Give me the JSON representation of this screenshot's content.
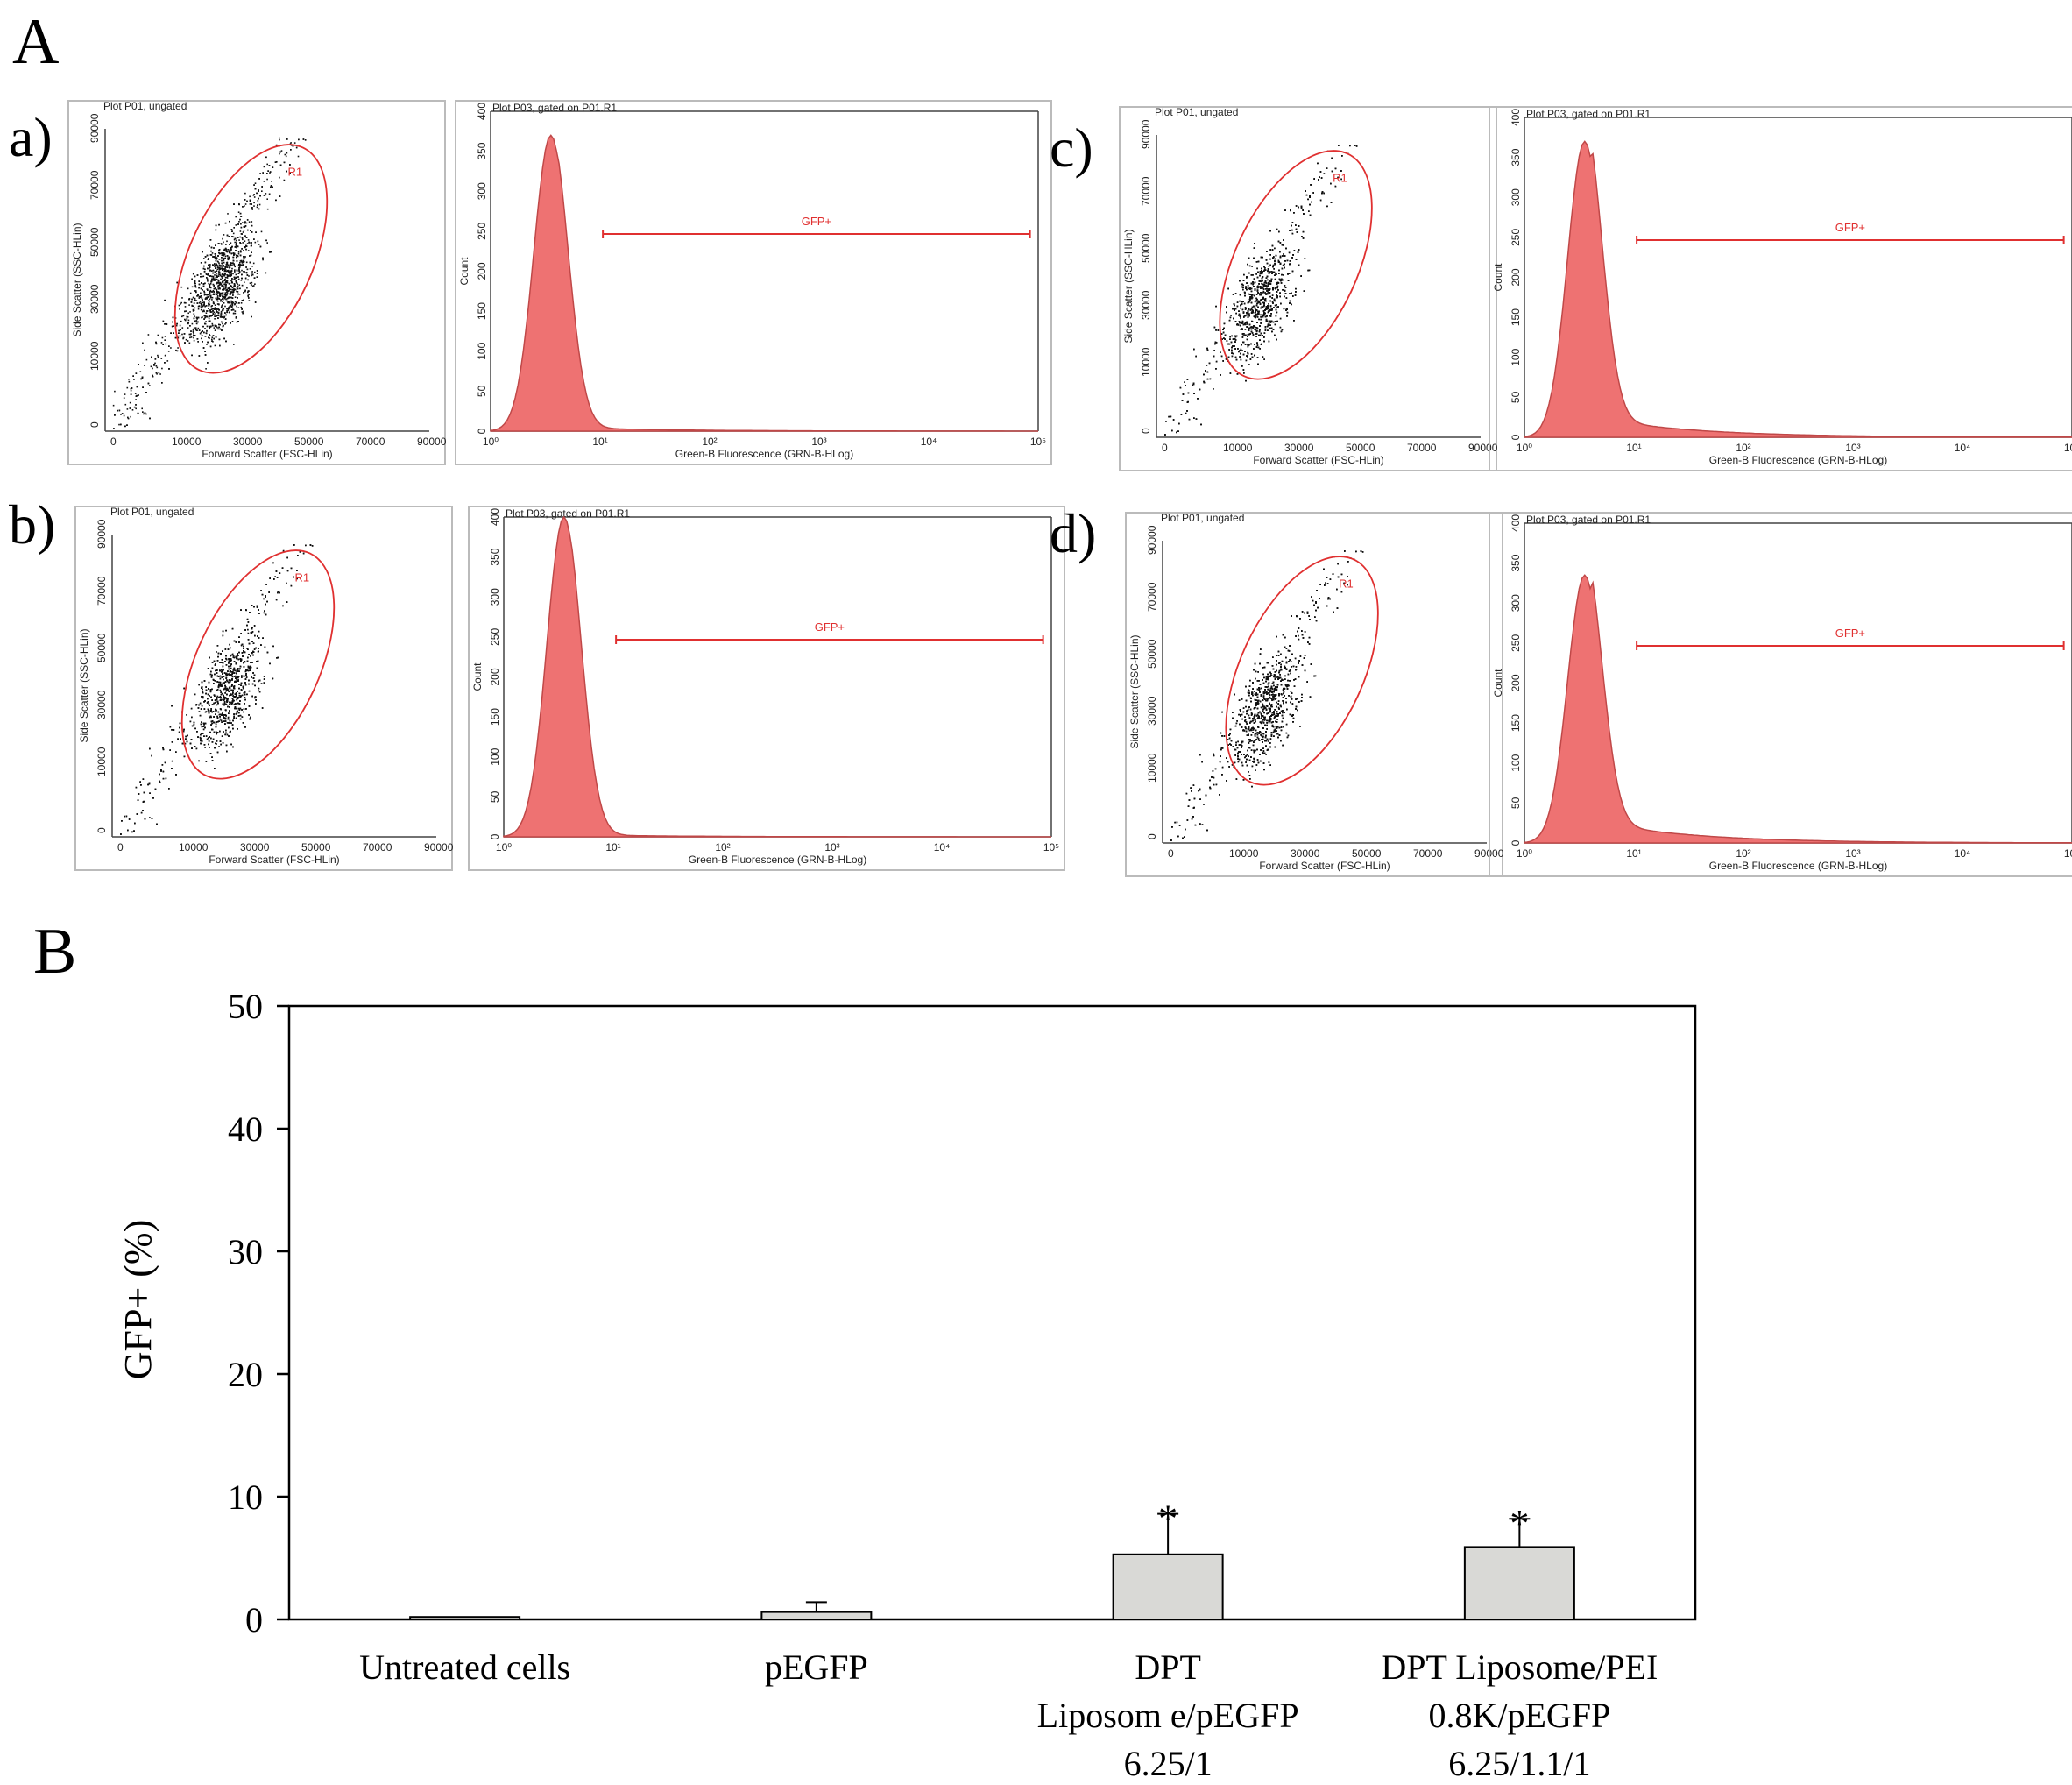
{
  "panel_a_label": "A",
  "panel_b_label": "B",
  "flow_panels": [
    {
      "letter": "a)",
      "scatter_title": "Plot P01, ungated",
      "hist_title": "Plot P03, gated on P01.R1",
      "hist_peak": 370,
      "tail": 0.01
    },
    {
      "letter": "b)",
      "scatter_title": "Plot P01, ungated",
      "hist_title": "Plot P03, gated on P01.R1",
      "hist_peak": 400,
      "tail": 0.005
    },
    {
      "letter": "c)",
      "scatter_title": "Plot P01, ungated",
      "hist_title": "Plot P03, gated on P01.R1",
      "hist_peak": 370,
      "tail": 0.05
    },
    {
      "letter": "d)",
      "scatter_title": "Plot P01, ungated",
      "hist_title": "Plot P03, gated on P01.R1",
      "hist_peak": 335,
      "tail": 0.06
    }
  ],
  "flow_common": {
    "scatter_xlabel": "Forward Scatter (FSC-HLin)",
    "scatter_ylabel": "Side Scatter (SSC-HLin)",
    "scatter_xticks": [
      "0",
      "10000",
      "30000",
      "50000",
      "70000",
      "90000"
    ],
    "scatter_yticks": [
      "0",
      "10000",
      "30000",
      "50000",
      "70000",
      "90000"
    ],
    "hist_xlabel": "Green-B Fluorescence (GRN-B-HLog)",
    "hist_ylabel": "Count",
    "hist_xticks": [
      "10⁰",
      "10¹",
      "10²",
      "10³",
      "10⁴",
      "10⁵"
    ],
    "hist_yticks": [
      "0",
      "50",
      "100",
      "150",
      "200",
      "250",
      "300",
      "350",
      "400"
    ],
    "gate_region": "R1",
    "gate_label": "GFP+",
    "hist_color": "#ee7272",
    "gate_color": "#e03030"
  },
  "chart_data": {
    "type": "bar",
    "title": "",
    "categories": [
      "Untreated cells",
      "pEGFP",
      "DPT Liposome/pEGFP 6.25/1",
      "DPT Liposome/PEI 0.8K/pEGFP 6.25/1.1/1"
    ],
    "category_lines": [
      [
        "Untreated cells"
      ],
      [
        "pEGFP"
      ],
      [
        "DPT",
        "Liposom e/pEGFP",
        "6.25/1"
      ],
      [
        "DPT Liposome/PEI",
        "0.8K/pEGFP",
        "6.25/1.1/1"
      ]
    ],
    "values": [
      0.2,
      0.6,
      5.3,
      5.9
    ],
    "errors": [
      0,
      0.8,
      3.3,
      2.3
    ],
    "significance": [
      "",
      "",
      "*",
      "*"
    ],
    "xlabel": "",
    "ylabel": "GFP+ (%)",
    "ylim": [
      0,
      50
    ],
    "yticks": [
      0,
      10,
      20,
      30,
      40,
      50
    ],
    "bar_color": "#d9d9d6"
  }
}
